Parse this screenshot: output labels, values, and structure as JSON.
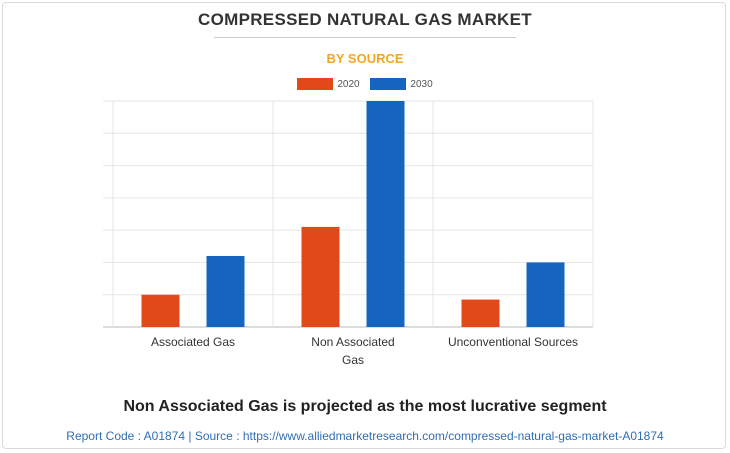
{
  "header": {
    "title": "COMPRESSED NATURAL GAS MARKET",
    "subtitle": "BY SOURCE"
  },
  "legend": [
    {
      "label": "2020",
      "color": "#e2491a"
    },
    {
      "label": "2030",
      "color": "#1565c0"
    }
  ],
  "chart_data": {
    "type": "bar",
    "title": "",
    "xlabel": "",
    "ylabel": "",
    "grid": true,
    "legend_position": "top-center",
    "categories": [
      "Associated Gas",
      "Non Associated Gas",
      "Unconventional Sources"
    ],
    "category_lines": [
      [
        "Associated Gas"
      ],
      [
        "Non Associated",
        "Gas"
      ],
      [
        "Unconventional Sources"
      ]
    ],
    "series": [
      {
        "name": "2020",
        "color": "#e2491a",
        "values": [
          1.0,
          3.1,
          0.85
        ]
      },
      {
        "name": "2030",
        "color": "#1565c0",
        "values": [
          2.2,
          7.0,
          2.0
        ]
      }
    ],
    "ylim": [
      0,
      7
    ]
  },
  "headline": "Non Associated Gas is projected as the most lucrative segment",
  "footer": "Report Code : A01874  |  Source : https://www.alliedmarketresearch.com/compressed-natural-gas-market-A01874"
}
